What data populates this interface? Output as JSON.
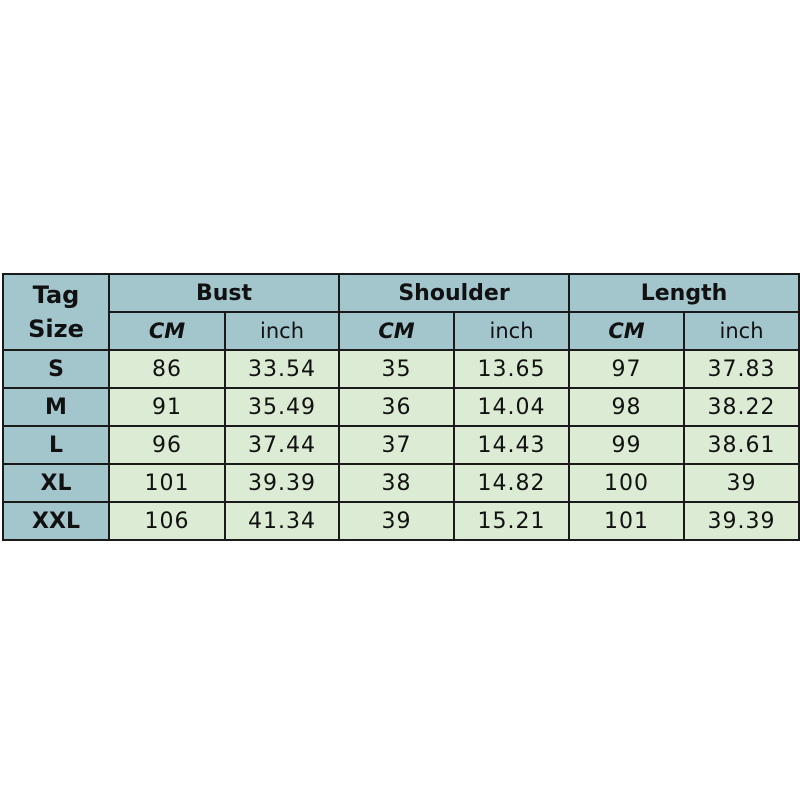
{
  "header": {
    "tag_size": [
      "Tag",
      "Size"
    ],
    "groups": [
      "Bust",
      "Shoulder",
      "Length"
    ],
    "units": [
      "CM",
      "inch",
      "CM",
      "inch",
      "CM",
      "inch"
    ]
  },
  "rows": [
    {
      "size": "S",
      "values": [
        "86",
        "33.54",
        "35",
        "13.65",
        "97",
        "37.83"
      ]
    },
    {
      "size": "M",
      "values": [
        "91",
        "35.49",
        "36",
        "14.04",
        "98",
        "38.22"
      ]
    },
    {
      "size": "L",
      "values": [
        "96",
        "37.44",
        "37",
        "14.43",
        "99",
        "38.61"
      ]
    },
    {
      "size": "XL",
      "values": [
        "101",
        "39.39",
        "38",
        "14.82",
        "100",
        "39"
      ]
    },
    {
      "size": "XXL",
      "values": [
        "106",
        "41.34",
        "39",
        "15.21",
        "101",
        "39.39"
      ]
    }
  ],
  "colors": {
    "header": "#a3c5cc",
    "cell": "#dcebd4",
    "border": "#1a1a1a"
  }
}
